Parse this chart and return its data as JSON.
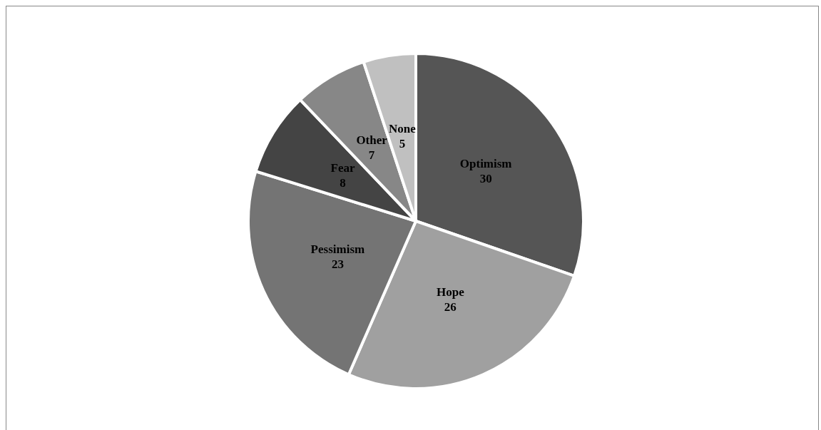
{
  "chart_data": {
    "type": "pie",
    "categories": [
      "Optimism",
      "Hope",
      "Pessimism",
      "Fear",
      "Other",
      "None"
    ],
    "values": [
      30,
      26,
      23,
      8,
      7,
      5
    ],
    "colors": [
      "#555555",
      "#a0a0a0",
      "#747474",
      "#444444",
      "#878787",
      "#c0c0c0"
    ],
    "data_labels": true,
    "legend": false
  }
}
